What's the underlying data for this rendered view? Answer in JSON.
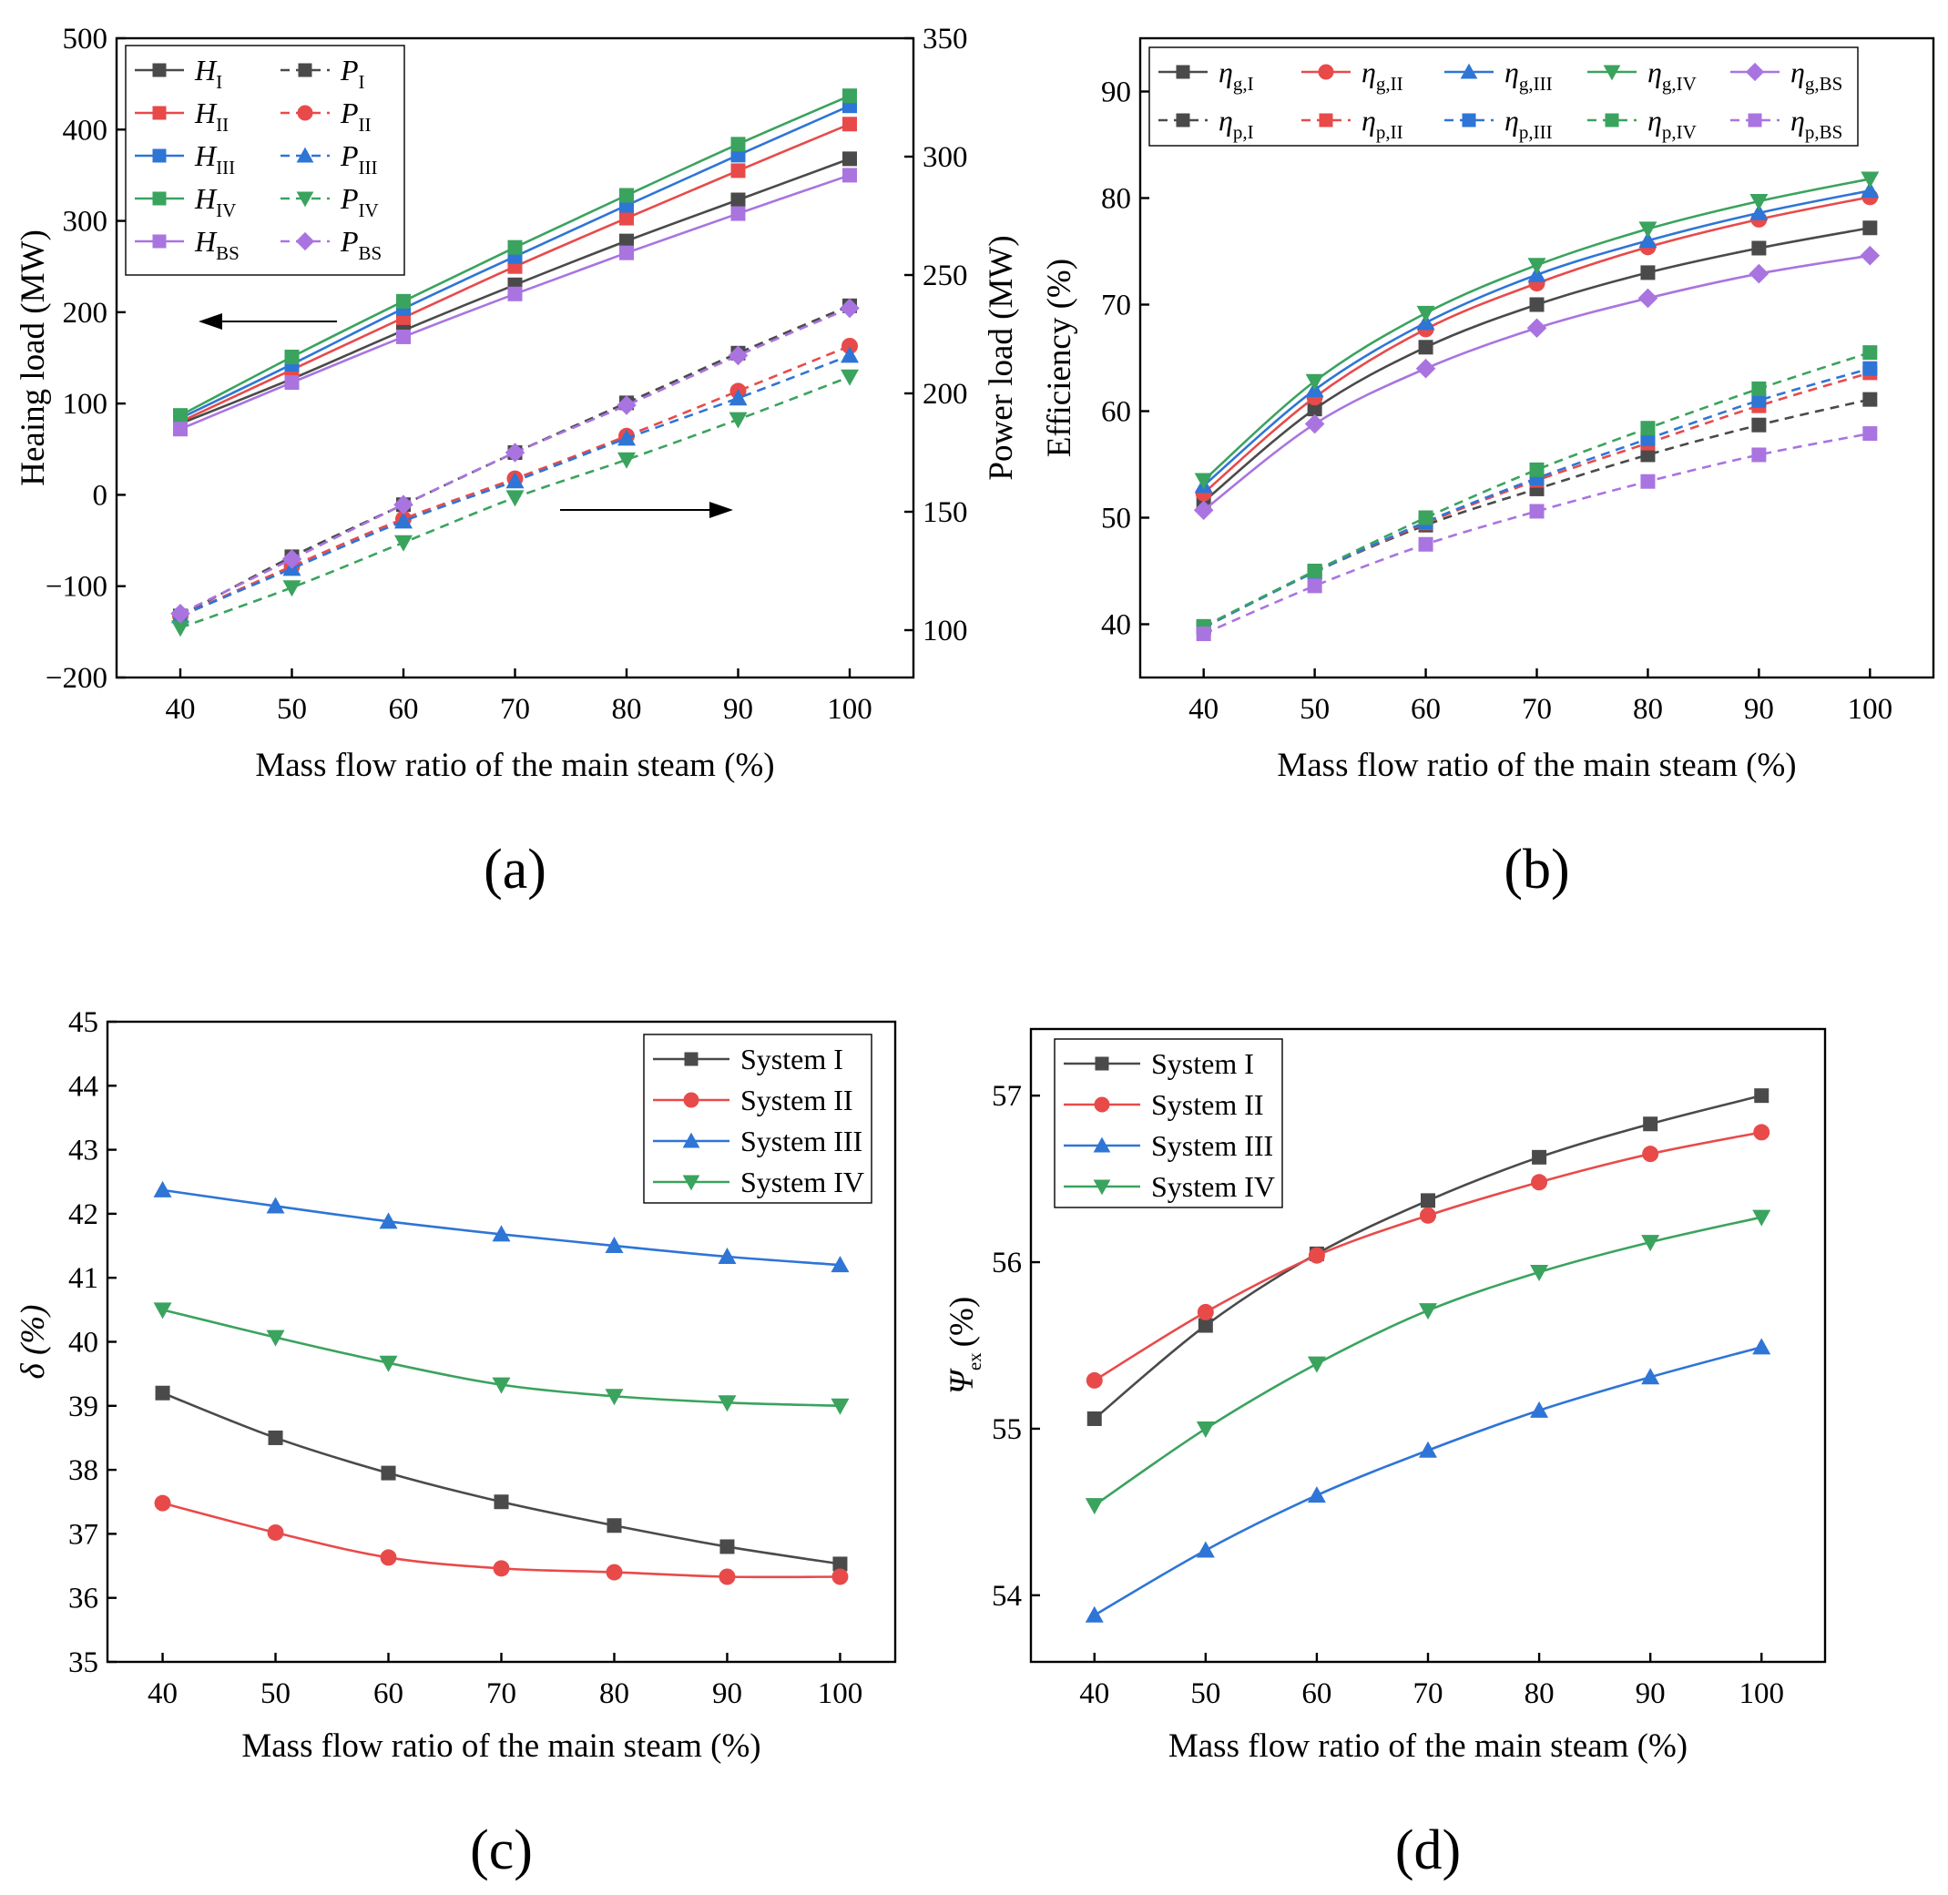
{
  "chart_data": [
    {
      "panel": "(a)",
      "type": "line",
      "x": [
        40,
        50,
        60,
        70,
        80,
        90,
        100
      ],
      "xlabel": "Mass flow ratio of the main steam (%)",
      "ylabel": "Heaing load (MW)",
      "ylabel_right": "Power load (MW)",
      "ylim": [
        -200,
        500
      ],
      "yticks": [
        -200,
        -100,
        0,
        100,
        200,
        300,
        400,
        500
      ],
      "ylim_right": [
        80,
        350
      ],
      "yticks_right": [
        100,
        150,
        200,
        250,
        300,
        350
      ],
      "series": [
        {
          "id": "HI",
          "name": "H",
          "sub": "I",
          "axis": "left",
          "color": "#4a4a4a",
          "marker": "square",
          "dash": "solid",
          "values": [
            78,
            127,
            180,
            230,
            278,
            323,
            368
          ]
        },
        {
          "id": "HII",
          "name": "H",
          "sub": "II",
          "axis": "left",
          "color": "#e84a4a",
          "marker": "square",
          "dash": "solid",
          "values": [
            80,
            137,
            194,
            250,
            303,
            355,
            406
          ]
        },
        {
          "id": "HIII",
          "name": "H",
          "sub": "III",
          "axis": "left",
          "color": "#2e75d6",
          "marker": "square",
          "dash": "solid",
          "values": [
            84,
            143,
            204,
            261,
            317,
            372,
            426
          ]
        },
        {
          "id": "HIV",
          "name": "H",
          "sub": "IV",
          "axis": "left",
          "color": "#3aa35e",
          "marker": "square",
          "dash": "solid",
          "values": [
            87,
            151,
            212,
            271,
            328,
            384,
            437
          ]
        },
        {
          "id": "HBS",
          "name": "H",
          "sub": "BS",
          "axis": "left",
          "color": "#a974e0",
          "marker": "square",
          "dash": "solid",
          "values": [
            72,
            123,
            173,
            220,
            265,
            308,
            350
          ]
        },
        {
          "id": "PI",
          "name": "P",
          "sub": "I",
          "axis": "right",
          "color": "#4a4a4a",
          "marker": "square",
          "dash": "dash",
          "values": [
            106,
            131,
            153,
            175,
            196,
            217,
            237
          ]
        },
        {
          "id": "PII",
          "name": "P",
          "sub": "II",
          "axis": "right",
          "color": "#e84a4a",
          "marker": "circle",
          "dash": "dash",
          "values": [
            106,
            127,
            147,
            164,
            182,
            201,
            220
          ]
        },
        {
          "id": "PIII",
          "name": "P",
          "sub": "III",
          "axis": "right",
          "color": "#2e75d6",
          "marker": "triangle-up",
          "dash": "dash",
          "values": [
            106,
            126,
            146,
            163,
            181,
            198,
            216
          ]
        },
        {
          "id": "PIV",
          "name": "P",
          "sub": "IV",
          "axis": "right",
          "color": "#3aa35e",
          "marker": "triangle-down",
          "dash": "dash",
          "values": [
            101,
            118,
            137,
            156,
            172,
            189,
            207
          ]
        },
        {
          "id": "PBS",
          "name": "P",
          "sub": "BS",
          "axis": "right",
          "color": "#a974e0",
          "marker": "diamond",
          "dash": "dash",
          "values": [
            107,
            130,
            153,
            175,
            195,
            216,
            236
          ]
        }
      ],
      "legend_position": "top-left"
    },
    {
      "panel": "(b)",
      "type": "line",
      "x": [
        40,
        50,
        60,
        70,
        80,
        90,
        100
      ],
      "xlabel": "Mass flow ratio of the main steam (%)",
      "ylabel": "Efficiency (%)",
      "ylim": [
        35,
        95
      ],
      "yticks": [
        40,
        50,
        60,
        70,
        80,
        90
      ],
      "series": [
        {
          "id": "egI",
          "name": "η",
          "sub": "g,I",
          "color": "#4a4a4a",
          "marker": "square",
          "dash": "solid",
          "values": [
            51.5,
            60.2,
            66,
            70,
            73,
            75.3,
            77.2
          ]
        },
        {
          "id": "egII",
          "name": "η",
          "sub": "g,II",
          "color": "#e84a4a",
          "marker": "circle",
          "dash": "solid",
          "values": [
            52.3,
            61.3,
            67.7,
            72,
            75.4,
            78,
            80.1
          ]
        },
        {
          "id": "egIII",
          "name": "η",
          "sub": "g,III",
          "color": "#2e75d6",
          "marker": "triangle-up",
          "dash": "solid",
          "values": [
            53,
            62,
            68.3,
            72.8,
            76,
            78.6,
            80.7
          ]
        },
        {
          "id": "egIV",
          "name": "η",
          "sub": "g,IV",
          "color": "#3aa35e",
          "marker": "triangle-down",
          "dash": "solid",
          "values": [
            53.5,
            62.8,
            69.2,
            73.7,
            77.1,
            79.7,
            81.8
          ]
        },
        {
          "id": "egBS",
          "name": "η",
          "sub": "g,BS",
          "color": "#a974e0",
          "marker": "diamond",
          "dash": "solid",
          "values": [
            50.7,
            58.8,
            64,
            67.8,
            70.6,
            72.9,
            74.6
          ]
        },
        {
          "id": "epI",
          "name": "η",
          "sub": "p,I",
          "color": "#4a4a4a",
          "marker": "square",
          "dash": "dash",
          "values": [
            39.7,
            44.9,
            49.3,
            52.7,
            55.9,
            58.7,
            61.1
          ]
        },
        {
          "id": "epII",
          "name": "η",
          "sub": "p,II",
          "color": "#e84a4a",
          "marker": "square",
          "dash": "dash",
          "values": [
            39.7,
            44.9,
            49.5,
            53.5,
            57,
            60.5,
            63.6
          ]
        },
        {
          "id": "epIII",
          "name": "η",
          "sub": "p,III",
          "color": "#2e75d6",
          "marker": "square",
          "dash": "dash",
          "values": [
            39.7,
            44.9,
            49.6,
            53.7,
            57.4,
            61,
            64
          ]
        },
        {
          "id": "epIV",
          "name": "η",
          "sub": "p,IV",
          "color": "#3aa35e",
          "marker": "square",
          "dash": "dash",
          "values": [
            39.8,
            45,
            50,
            54.5,
            58.4,
            62.1,
            65.5
          ]
        },
        {
          "id": "epBS",
          "name": "η",
          "sub": "p,BS",
          "color": "#a974e0",
          "marker": "square",
          "dash": "dash",
          "values": [
            39.1,
            43.6,
            47.5,
            50.6,
            53.4,
            55.9,
            57.9
          ]
        }
      ],
      "legend_position": "top"
    },
    {
      "panel": "(c)",
      "type": "line",
      "x": [
        40,
        50,
        60,
        70,
        80,
        90,
        100
      ],
      "xlabel": "Mass flow ratio of the main steam (%)",
      "ylabel": "δ (%)",
      "ylim": [
        35,
        45
      ],
      "yticks": [
        35,
        36,
        37,
        38,
        39,
        40,
        41,
        42,
        43,
        44,
        45
      ],
      "series": [
        {
          "id": "cI",
          "name": "System I",
          "color": "#4a4a4a",
          "marker": "square",
          "dash": "solid",
          "values": [
            39.2,
            38.5,
            37.95,
            37.5,
            37.13,
            36.8,
            36.53
          ]
        },
        {
          "id": "cII",
          "name": "System II",
          "color": "#e84a4a",
          "marker": "circle",
          "dash": "solid",
          "values": [
            37.48,
            37.02,
            36.63,
            36.46,
            36.4,
            36.33,
            36.33
          ]
        },
        {
          "id": "cIII",
          "name": "System III",
          "color": "#2e75d6",
          "marker": "triangle-up",
          "dash": "solid",
          "values": [
            42.37,
            42.12,
            41.88,
            41.68,
            41.5,
            41.33,
            41.2
          ]
        },
        {
          "id": "cIV",
          "name": "System IV",
          "color": "#3aa35e",
          "marker": "triangle-down",
          "dash": "solid",
          "values": [
            40.5,
            40.07,
            39.67,
            39.33,
            39.15,
            39.05,
            39
          ]
        }
      ],
      "legend_position": "top-right"
    },
    {
      "panel": "(d)",
      "type": "line",
      "x": [
        40,
        50,
        60,
        70,
        80,
        90,
        100
      ],
      "xlabel": "Mass flow ratio of the main steam (%)",
      "ylabel": "Ψ",
      "ylabel_sub": "ex",
      "ylabel_unit": "(%)",
      "ylim": [
        53.6,
        57.4
      ],
      "yticks": [
        54,
        55,
        56,
        57
      ],
      "series": [
        {
          "id": "dI",
          "name": "System I",
          "color": "#4a4a4a",
          "marker": "square",
          "dash": "solid",
          "values": [
            55.06,
            55.62,
            56.05,
            56.37,
            56.63,
            56.83,
            57
          ]
        },
        {
          "id": "dII",
          "name": "System II",
          "color": "#e84a4a",
          "marker": "circle",
          "dash": "solid",
          "values": [
            55.29,
            55.7,
            56.04,
            56.28,
            56.48,
            56.65,
            56.78
          ]
        },
        {
          "id": "dIII",
          "name": "System III",
          "color": "#2e75d6",
          "marker": "triangle-up",
          "dash": "solid",
          "values": [
            53.88,
            54.27,
            54.6,
            54.87,
            55.11,
            55.31,
            55.49
          ]
        },
        {
          "id": "dIV",
          "name": "System IV",
          "color": "#3aa35e",
          "marker": "triangle-down",
          "dash": "solid",
          "values": [
            54.54,
            55,
            55.39,
            55.71,
            55.94,
            56.12,
            56.27
          ]
        }
      ],
      "legend_position": "top-left"
    }
  ]
}
